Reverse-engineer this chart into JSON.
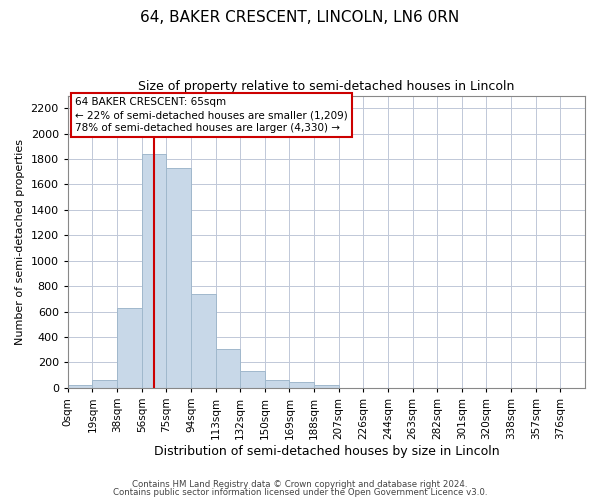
{
  "title": "64, BAKER CRESCENT, LINCOLN, LN6 0RN",
  "subtitle": "Size of property relative to semi-detached houses in Lincoln",
  "xlabel": "Distribution of semi-detached houses by size in Lincoln",
  "ylabel": "Number of semi-detached properties",
  "bar_labels": [
    "0sqm",
    "19sqm",
    "38sqm",
    "56sqm",
    "75sqm",
    "94sqm",
    "113sqm",
    "132sqm",
    "150sqm",
    "169sqm",
    "188sqm",
    "207sqm",
    "226sqm",
    "244sqm",
    "263sqm",
    "282sqm",
    "301sqm",
    "320sqm",
    "338sqm",
    "357sqm",
    "376sqm"
  ],
  "bar_heights": [
    20,
    60,
    630,
    1840,
    1730,
    740,
    305,
    130,
    65,
    45,
    20,
    0,
    0,
    0,
    0,
    0,
    0,
    0,
    0,
    0,
    0
  ],
  "bar_color": "#c8d8e8",
  "bar_edge_color": "#a0b8cc",
  "property_line_x": 3.5,
  "annotation_title": "64 BAKER CRESCENT: 65sqm",
  "annotation_line1": "← 22% of semi-detached houses are smaller (1,209)",
  "annotation_line2": "78% of semi-detached houses are larger (4,330) →",
  "annotation_box_color": "#ffffff",
  "annotation_box_edge": "#cc0000",
  "vline_color": "#cc0000",
  "ylim": [
    0,
    2300
  ],
  "yticks": [
    0,
    200,
    400,
    600,
    800,
    1000,
    1200,
    1400,
    1600,
    1800,
    2000,
    2200
  ],
  "footer1": "Contains HM Land Registry data © Crown copyright and database right 2024.",
  "footer2": "Contains public sector information licensed under the Open Government Licence v3.0.",
  "background_color": "#ffffff",
  "grid_color": "#c0c8d8"
}
